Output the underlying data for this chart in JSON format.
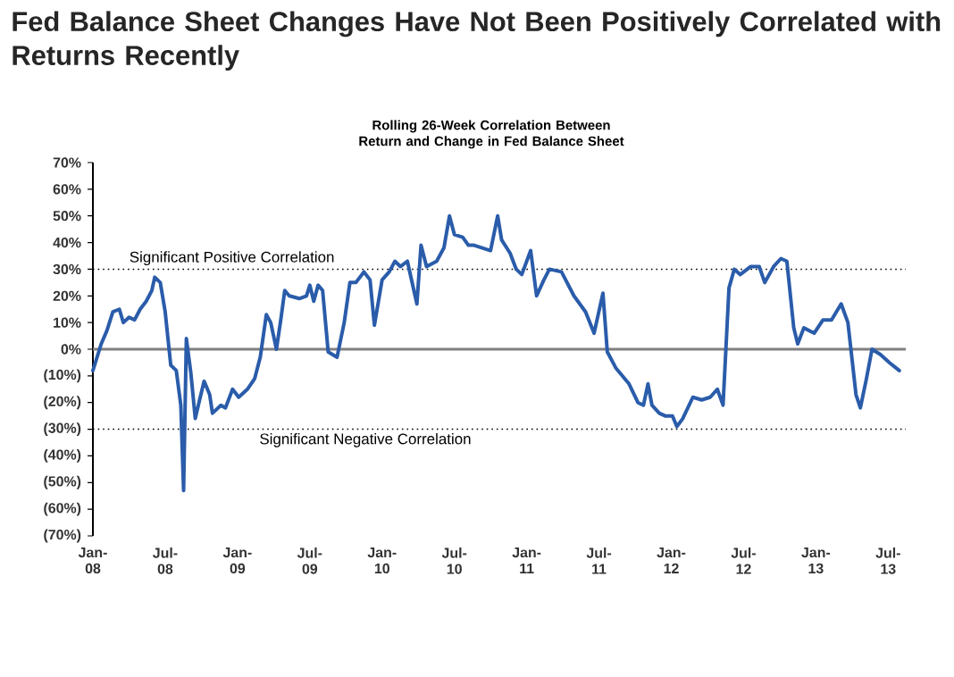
{
  "chart_data": {
    "type": "line",
    "title": "Fed Balance Sheet Changes Have Not Been Positively Correlated with Returns Recently",
    "subtitle": "Rolling 26-Week Correlation Between Return and Change in Fed Balance Sheet",
    "x": [
      "2008-01-01",
      "2008-01-22",
      "2008-02-06",
      "2008-02-21",
      "2008-03-07",
      "2008-03-17",
      "2008-04-01",
      "2008-04-15",
      "2008-04-29",
      "2008-05-14",
      "2008-05-28",
      "2008-06-05",
      "2008-06-19",
      "2008-07-01",
      "2008-07-15",
      "2008-07-29",
      "2008-08-10",
      "2008-08-17",
      "2008-08-24",
      "2008-09-05",
      "2008-09-16",
      "2008-09-27",
      "2008-10-08",
      "2008-10-22",
      "2008-10-29",
      "2008-11-20",
      "2008-12-01",
      "2008-12-19",
      "2009-01-04",
      "2009-01-26",
      "2009-02-14",
      "2009-02-28",
      "2009-03-13",
      "2009-03-24",
      "2009-04-08",
      "2009-04-19",
      "2009-04-29",
      "2009-05-10",
      "2009-06-05",
      "2009-06-23",
      "2009-07-01",
      "2009-07-11",
      "2009-07-22",
      "2009-08-03",
      "2009-08-17",
      "2009-09-09",
      "2009-09-27",
      "2009-10-11",
      "2009-10-26",
      "2009-11-16",
      "2009-12-01",
      "2009-12-12",
      "2010-01-01",
      "2010-01-19",
      "2010-02-03",
      "2010-02-17",
      "2010-03-04",
      "2010-03-28",
      "2010-04-08",
      "2010-04-22",
      "2010-05-17",
      "2010-06-05",
      "2010-06-19",
      "2010-07-01",
      "2010-07-22",
      "2010-08-06",
      "2010-08-20",
      "2010-10-01",
      "2010-10-19",
      "2010-10-29",
      "2010-11-20",
      "2010-12-05",
      "2010-12-19",
      "2011-01-11",
      "2011-01-26",
      "2011-02-14",
      "2011-02-28",
      "2011-03-28",
      "2011-04-29",
      "2011-05-28",
      "2011-06-19",
      "2011-07-11",
      "2011-07-22",
      "2011-08-13",
      "2011-09-16",
      "2011-10-08",
      "2011-10-22",
      "2011-11-03",
      "2011-11-13",
      "2011-12-01",
      "2011-12-16",
      "2012-01-04",
      "2012-01-15",
      "2012-01-30",
      "2012-02-25",
      "2012-03-17",
      "2012-04-08",
      "2012-04-26",
      "2012-05-10",
      "2012-05-25",
      "2012-06-08",
      "2012-06-23",
      "2012-07-19",
      "2012-08-10",
      "2012-08-24",
      "2012-09-16",
      "2012-10-04",
      "2012-10-19",
      "2012-11-06",
      "2012-11-16",
      "2012-12-01",
      "2012-12-27",
      "2013-01-19",
      "2013-02-10",
      "2013-03-04",
      "2013-03-21",
      "2013-04-11",
      "2013-04-22",
      "2013-05-07",
      "2013-05-21",
      "2013-06-12",
      "2013-07-04",
      "2013-07-29"
    ],
    "values": [
      -8,
      2,
      7,
      14,
      15,
      10,
      12,
      11,
      15,
      18,
      22,
      27,
      25,
      14,
      -6,
      -8,
      -21,
      -53,
      4,
      -9,
      -26,
      -19,
      -12,
      -17,
      -24,
      -21,
      -22,
      -15,
      -18,
      -15,
      -11,
      -3,
      13,
      10,
      0,
      11,
      22,
      20,
      19,
      20,
      24,
      18,
      24,
      22,
      -1,
      -3,
      10,
      25,
      25,
      29,
      26,
      9,
      26,
      29,
      33,
      31,
      33,
      17,
      39,
      31,
      33,
      38,
      50,
      43,
      42,
      39,
      39,
      37,
      50,
      41,
      36,
      30,
      28,
      37,
      20,
      26,
      30,
      29,
      20,
      14,
      6,
      21,
      -1,
      -7,
      -13,
      -20,
      -21,
      -13,
      -21,
      -24,
      -25,
      -25,
      -29,
      -26,
      -18,
      -19,
      -18,
      -15,
      -21,
      23,
      30,
      28,
      31,
      31,
      25,
      31,
      34,
      33,
      8,
      2,
      8,
      6,
      11,
      11,
      17,
      10,
      -17,
      -22,
      -11,
      0,
      -2,
      -5,
      -8
    ],
    "color": "#2a5caa",
    "line_style": "solid",
    "marker": "none",
    "xlim": [
      "2008-01-01",
      "2013-08-15"
    ],
    "xticks": [
      {
        "value": "2008-01",
        "label": "Jan-08"
      },
      {
        "value": "2008-07",
        "label": "Jul-08"
      },
      {
        "value": "2009-01",
        "label": "Jan-09"
      },
      {
        "value": "2009-07",
        "label": "Jul-09"
      },
      {
        "value": "2010-01",
        "label": "Jan-10"
      },
      {
        "value": "2010-07",
        "label": "Jul-10"
      },
      {
        "value": "2011-01",
        "label": "Jan-11"
      },
      {
        "value": "2011-07",
        "label": "Jul-11"
      },
      {
        "value": "2012-01",
        "label": "Jan-12"
      },
      {
        "value": "2012-07",
        "label": "Jul-12"
      },
      {
        "value": "2013-01",
        "label": "Jan-13"
      },
      {
        "value": "2013-07",
        "label": "Jul-13"
      }
    ],
    "ylim": [
      -70,
      70
    ],
    "yticks": [
      {
        "value": 70,
        "label": "70%"
      },
      {
        "value": 60,
        "label": "60%"
      },
      {
        "value": 50,
        "label": "50%"
      },
      {
        "value": 40,
        "label": "40%"
      },
      {
        "value": 30,
        "label": "30%"
      },
      {
        "value": 20,
        "label": "20%"
      },
      {
        "value": 10,
        "label": "10%"
      },
      {
        "value": 0,
        "label": "0%"
      },
      {
        "value": -10,
        "label": "(10%)"
      },
      {
        "value": -20,
        "label": "(20%)"
      },
      {
        "value": -30,
        "label": "(30%)"
      },
      {
        "value": -40,
        "label": "(40%)"
      },
      {
        "value": -50,
        "label": "(50%)"
      },
      {
        "value": -60,
        "label": "(60%)"
      },
      {
        "value": -70,
        "label": "(70%)"
      }
    ],
    "ref_lines": [
      {
        "axis": "y",
        "value": 0,
        "color": "#808080",
        "line_style": "solid"
      },
      {
        "axis": "y",
        "value": 30,
        "label": "Significant Positive Correlation",
        "color": "#000000",
        "line_style": "dotted"
      },
      {
        "axis": "y",
        "value": -30,
        "label": "Significant Negative Correlation",
        "color": "#000000",
        "line_style": "dotted"
      }
    ],
    "grid": false
  }
}
